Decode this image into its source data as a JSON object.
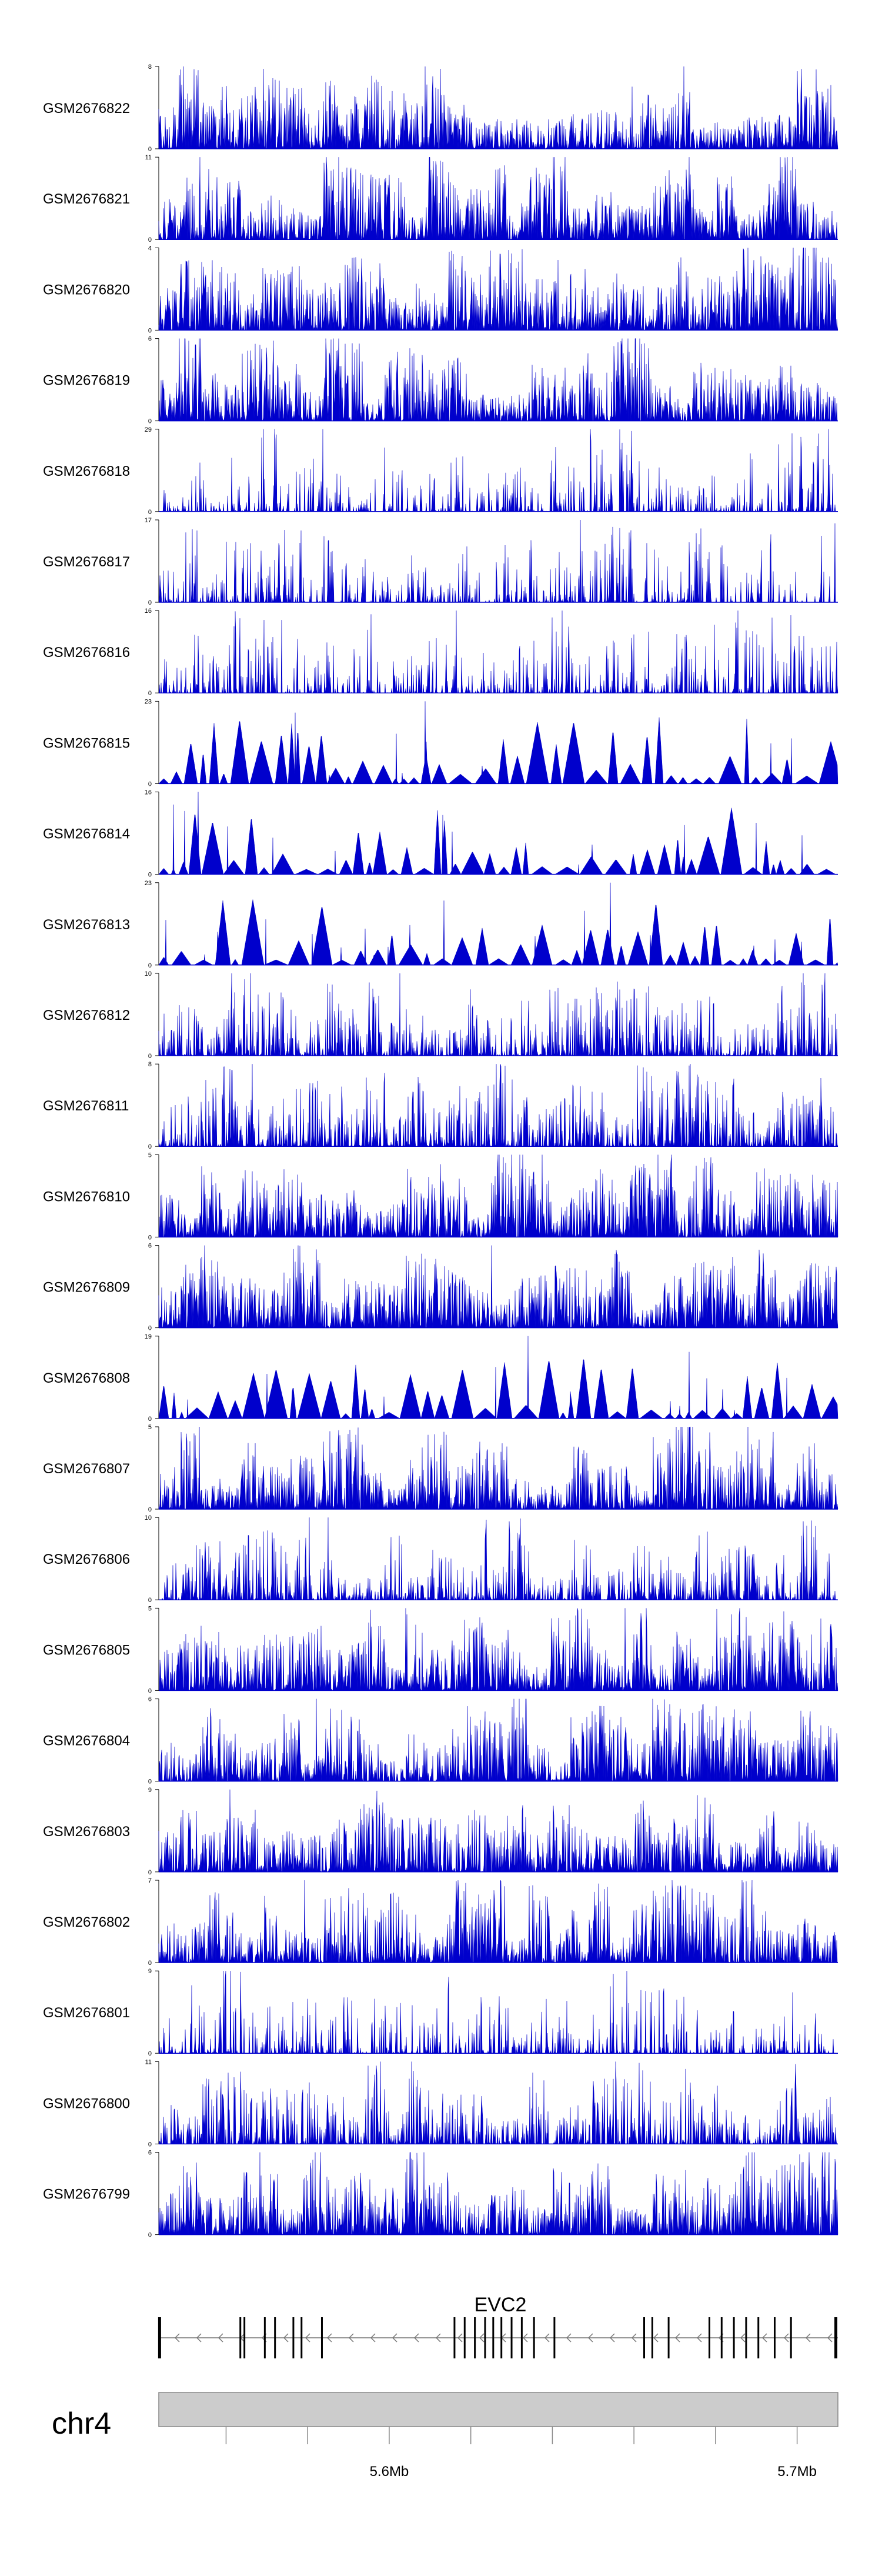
{
  "chart_data": {
    "type": "area",
    "title": "",
    "chromosome": "chr4",
    "region_mb": [
      5.5435,
      5.71
    ],
    "axis_ticks_mb": [
      5.56,
      5.58,
      5.6,
      5.62,
      5.64,
      5.66,
      5.68,
      5.7
    ],
    "axis_labels": [
      {
        "mb": 5.6,
        "label": "5.6Mb"
      },
      {
        "mb": 5.7,
        "label": "5.7Mb"
      }
    ],
    "series_color": "#0000CC",
    "gene": {
      "name": "EVC2",
      "strand": "-",
      "start_mb": 5.5435,
      "end_mb": 5.71,
      "exons_mb": [
        5.5437,
        5.5635,
        5.5645,
        5.5695,
        5.572,
        5.5765,
        5.5785,
        5.5835,
        5.616,
        5.6185,
        5.621,
        5.6235,
        5.6255,
        5.6275,
        5.63,
        5.6325,
        5.6355,
        5.6405,
        5.6625,
        5.6645,
        5.6685,
        5.6785,
        5.6815,
        5.6845,
        5.6875,
        5.6905,
        5.6945,
        5.6985,
        5.7095
      ]
    },
    "series": [
      {
        "name": "GSM2676822",
        "ymax": 8,
        "pattern": "dense",
        "seed": 101
      },
      {
        "name": "GSM2676821",
        "ymax": 11,
        "pattern": "dense",
        "seed": 102
      },
      {
        "name": "GSM2676820",
        "ymax": 4,
        "pattern": "dense",
        "seed": 103
      },
      {
        "name": "GSM2676819",
        "ymax": 6,
        "pattern": "dense",
        "seed": 104
      },
      {
        "name": "GSM2676818",
        "ymax": 29,
        "pattern": "sparse",
        "seed": 105
      },
      {
        "name": "GSM2676817",
        "ymax": 17,
        "pattern": "sparse",
        "seed": 106
      },
      {
        "name": "GSM2676816",
        "ymax": 16,
        "pattern": "sparse",
        "seed": 107
      },
      {
        "name": "GSM2676815",
        "ymax": 23,
        "pattern": "triangles",
        "seed": 108
      },
      {
        "name": "GSM2676814",
        "ymax": 16,
        "pattern": "triangles",
        "seed": 109
      },
      {
        "name": "GSM2676813",
        "ymax": 23,
        "pattern": "triangles",
        "seed": 110
      },
      {
        "name": "GSM2676812",
        "ymax": 10,
        "pattern": "medium",
        "seed": 111
      },
      {
        "name": "GSM2676811",
        "ymax": 8,
        "pattern": "medium",
        "seed": 112
      },
      {
        "name": "GSM2676810",
        "ymax": 5,
        "pattern": "dense",
        "seed": 113
      },
      {
        "name": "GSM2676809",
        "ymax": 6,
        "pattern": "dense",
        "seed": 114
      },
      {
        "name": "GSM2676808",
        "ymax": 19,
        "pattern": "triangles",
        "seed": 115
      },
      {
        "name": "GSM2676807",
        "ymax": 5,
        "pattern": "dense",
        "seed": 116
      },
      {
        "name": "GSM2676806",
        "ymax": 10,
        "pattern": "medium",
        "seed": 117
      },
      {
        "name": "GSM2676805",
        "ymax": 5,
        "pattern": "dense",
        "seed": 118
      },
      {
        "name": "GSM2676804",
        "ymax": 6,
        "pattern": "dense",
        "seed": 119
      },
      {
        "name": "GSM2676803",
        "ymax": 9,
        "pattern": "dense",
        "seed": 120
      },
      {
        "name": "GSM2676802",
        "ymax": 7,
        "pattern": "dense",
        "seed": 121
      },
      {
        "name": "GSM2676801",
        "ymax": 9,
        "pattern": "sparse",
        "seed": 122
      },
      {
        "name": "GSM2676800",
        "ymax": 11,
        "pattern": "medium",
        "seed": 123
      },
      {
        "name": "GSM2676799",
        "ymax": 6,
        "pattern": "dense",
        "seed": 124
      }
    ]
  }
}
